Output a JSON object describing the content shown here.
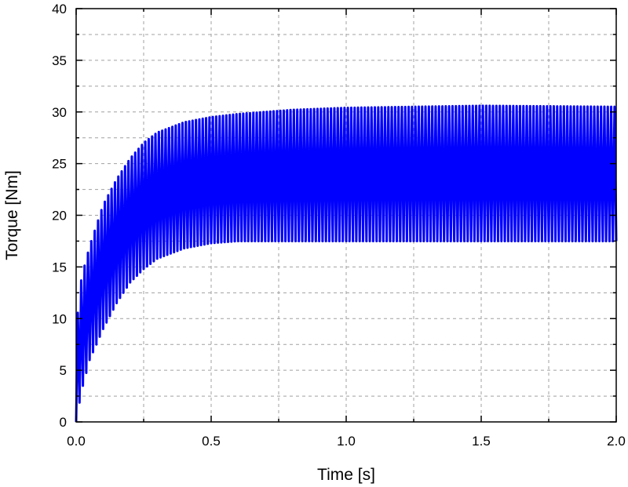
{
  "chart_data": {
    "type": "line",
    "xlabel": "Time [s]",
    "ylabel": "Torque [Nm]",
    "xlim": [
      0,
      2.0
    ],
    "ylim": [
      0,
      40
    ],
    "x_ticks": [
      "0.0",
      "0.5",
      "1.0",
      "1.5",
      "2.0"
    ],
    "y_ticks": [
      "0",
      "5",
      "10",
      "15",
      "20",
      "25",
      "30",
      "35",
      "40"
    ],
    "grid": true,
    "legend": "none",
    "series": [
      {
        "color": "#0000ff",
        "ripple_period_s": 0.0125,
        "upper_envelope": {
          "x": [
            0.0,
            0.02,
            0.05,
            0.1,
            0.15,
            0.2,
            0.25,
            0.3,
            0.4,
            0.5,
            0.6,
            0.8,
            1.0,
            1.5,
            2.0
          ],
          "y": [
            9,
            14,
            17,
            21,
            23.5,
            25.5,
            27,
            28,
            29,
            29.5,
            29.8,
            30.2,
            30.4,
            30.6,
            30.5
          ]
        },
        "lower_envelope": {
          "x": [
            0.0,
            0.02,
            0.05,
            0.1,
            0.15,
            0.2,
            0.25,
            0.3,
            0.4,
            0.5,
            0.6,
            0.8,
            1.0,
            1.5,
            2.0
          ],
          "y": [
            0,
            3,
            6,
            9,
            11.5,
            13.5,
            14.8,
            15.8,
            16.8,
            17.3,
            17.5,
            17.5,
            17.5,
            17.5,
            17.5
          ]
        }
      }
    ]
  }
}
